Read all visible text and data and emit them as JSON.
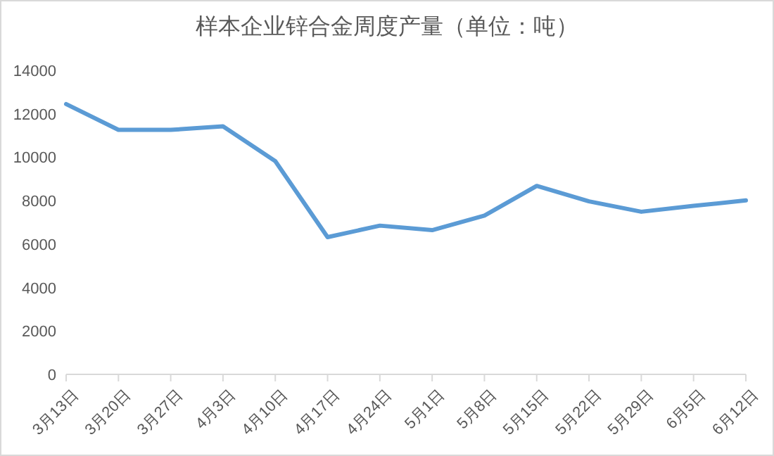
{
  "chart_data": {
    "type": "line",
    "title": "样本企业锌合金周度产量（单位：吨）",
    "categories": [
      "3月13日",
      "3月20日",
      "3月27日",
      "4月3日",
      "4月10日",
      "4月17日",
      "4月24日",
      "5月1日",
      "5月8日",
      "5月15日",
      "5月22日",
      "5月29日",
      "6月5日",
      "6月12日"
    ],
    "series": [
      {
        "color": "#5b9bd5",
        "values": [
          12450,
          11260,
          11260,
          11420,
          9820,
          6320,
          6850,
          6640,
          7310,
          8680,
          7970,
          7490,
          7760,
          8010
        ]
      }
    ],
    "ylim": [
      0,
      14000
    ],
    "yticks": [
      0,
      2000,
      4000,
      6000,
      8000,
      10000,
      12000,
      14000
    ],
    "grid": false,
    "marker": "none",
    "line_style": "solid"
  }
}
